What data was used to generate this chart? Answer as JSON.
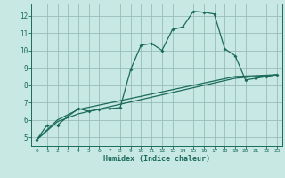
{
  "xlabel": "Humidex (Indice chaleur)",
  "bg_color": "#c8e8e4",
  "grid_color": "#9abcb8",
  "line_color": "#1a6b5a",
  "axis_bg": "#c8e8e4",
  "xlim": [
    -0.5,
    23.5
  ],
  "ylim": [
    4.5,
    12.7
  ],
  "xticks": [
    0,
    1,
    2,
    3,
    4,
    5,
    6,
    7,
    8,
    9,
    10,
    11,
    12,
    13,
    14,
    15,
    16,
    17,
    18,
    19,
    20,
    21,
    22,
    23
  ],
  "yticks": [
    5,
    6,
    7,
    8,
    9,
    10,
    11,
    12
  ],
  "line1_x": [
    0,
    1,
    2,
    3,
    4,
    5,
    6,
    7,
    8,
    9,
    10,
    11,
    12,
    13,
    14,
    15,
    16,
    17,
    18,
    19,
    20,
    21,
    22,
    23
  ],
  "line1_y": [
    4.85,
    5.7,
    5.7,
    6.2,
    6.65,
    6.5,
    6.6,
    6.65,
    6.7,
    8.9,
    10.3,
    10.4,
    10.0,
    11.2,
    11.35,
    12.25,
    12.2,
    12.1,
    10.1,
    9.7,
    8.3,
    8.4,
    8.5,
    8.6
  ],
  "line2_x": [
    0,
    2,
    4,
    19,
    23
  ],
  "line2_y": [
    4.85,
    5.9,
    6.35,
    8.4,
    8.6
  ],
  "line3_x": [
    0,
    2,
    4,
    19,
    23
  ],
  "line3_y": [
    4.85,
    6.0,
    6.6,
    8.5,
    8.6
  ]
}
